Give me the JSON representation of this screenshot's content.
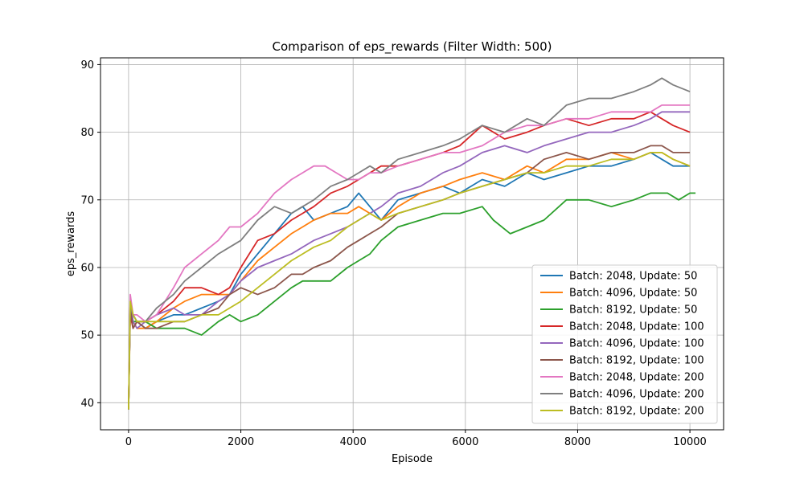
{
  "chart_data": {
    "type": "line",
    "title": "Comparison of eps_rewards (Filter Width: 500)",
    "xlabel": "Episode",
    "ylabel": "eps_rewards",
    "xlim": [
      -500,
      10600
    ],
    "ylim": [
      36,
      91
    ],
    "xticks": [
      0,
      2000,
      4000,
      6000,
      8000,
      10000
    ],
    "yticks": [
      40,
      50,
      60,
      70,
      80,
      90
    ],
    "grid": true,
    "legend_position": "lower right",
    "series": [
      {
        "name": "Batch: 2048, Update: 50",
        "color": "#1f77b4",
        "x": [
          0,
          30,
          80,
          150,
          300,
          500,
          800,
          1000,
          1300,
          1600,
          1800,
          2000,
          2300,
          2600,
          2900,
          3100,
          3300,
          3600,
          3900,
          4100,
          4300,
          4500,
          4800,
          5200,
          5600,
          5900,
          6300,
          6700,
          7100,
          7400,
          7800,
          8200,
          8600,
          9000,
          9300,
          9500,
          9700,
          10000
        ],
        "y": [
          39,
          54,
          53,
          52,
          51,
          52,
          53,
          53,
          54,
          55,
          56,
          59,
          62,
          65,
          68,
          69,
          67,
          68,
          69,
          71,
          69,
          67,
          70,
          71,
          72,
          71,
          73,
          72,
          74,
          73,
          74,
          75,
          75,
          76,
          77,
          76,
          75,
          75
        ]
      },
      {
        "name": "Batch: 4096, Update: 50",
        "color": "#ff7f0e",
        "x": [
          0,
          30,
          80,
          150,
          300,
          500,
          800,
          1000,
          1300,
          1600,
          1800,
          2000,
          2300,
          2600,
          2900,
          3100,
          3300,
          3600,
          3900,
          4100,
          4300,
          4500,
          4800,
          5200,
          5600,
          5900,
          6300,
          6700,
          7100,
          7400,
          7800,
          8200,
          8600,
          9000,
          9300,
          9500,
          9700,
          10000
        ],
        "y": [
          39,
          55,
          52,
          51,
          51,
          52,
          54,
          55,
          56,
          56,
          56,
          58,
          61,
          63,
          65,
          66,
          67,
          68,
          68,
          69,
          68,
          67,
          69,
          71,
          72,
          73,
          74,
          73,
          75,
          74,
          76,
          76,
          77,
          76,
          77,
          77,
          76,
          75
        ]
      },
      {
        "name": "Batch: 8192, Update: 50",
        "color": "#2ca02c",
        "x": [
          0,
          30,
          80,
          150,
          300,
          500,
          800,
          1000,
          1300,
          1600,
          1800,
          2000,
          2300,
          2600,
          2900,
          3100,
          3300,
          3600,
          3900,
          4100,
          4300,
          4500,
          4800,
          5200,
          5600,
          5900,
          6300,
          6500,
          6800,
          7100,
          7400,
          7800,
          8200,
          8600,
          9000,
          9300,
          9600,
          9800,
          10000,
          10100
        ],
        "y": [
          39,
          54,
          52,
          52,
          52,
          51,
          51,
          51,
          50,
          52,
          53,
          52,
          53,
          55,
          57,
          58,
          58,
          58,
          60,
          61,
          62,
          64,
          66,
          67,
          68,
          68,
          69,
          67,
          65,
          66,
          67,
          70,
          70,
          69,
          70,
          71,
          71,
          70,
          71,
          71
        ]
      },
      {
        "name": "Batch: 2048, Update: 100",
        "color": "#d62728",
        "x": [
          0,
          30,
          80,
          150,
          300,
          500,
          800,
          1000,
          1300,
          1600,
          1800,
          2000,
          2300,
          2600,
          2900,
          3100,
          3300,
          3600,
          3900,
          4100,
          4300,
          4500,
          4800,
          5200,
          5600,
          5900,
          6300,
          6700,
          7100,
          7400,
          7800,
          8200,
          8600,
          9000,
          9300,
          9500,
          9700,
          10000
        ],
        "y": [
          39,
          53,
          51,
          52,
          52,
          53,
          55,
          57,
          57,
          56,
          57,
          60,
          64,
          65,
          67,
          68,
          69,
          71,
          72,
          73,
          74,
          75,
          75,
          76,
          77,
          78,
          81,
          79,
          80,
          81,
          82,
          81,
          82,
          82,
          83,
          82,
          81,
          80
        ]
      },
      {
        "name": "Batch: 4096, Update: 100",
        "color": "#9467bd",
        "x": [
          0,
          30,
          80,
          150,
          300,
          500,
          800,
          1000,
          1300,
          1600,
          1800,
          2000,
          2300,
          2600,
          2900,
          3100,
          3300,
          3600,
          3900,
          4100,
          4300,
          4500,
          4800,
          5200,
          5600,
          5900,
          6300,
          6700,
          7100,
          7400,
          7800,
          8200,
          8600,
          9000,
          9300,
          9500,
          9700,
          10000
        ],
        "y": [
          39,
          55,
          52,
          51,
          52,
          53,
          54,
          53,
          53,
          55,
          56,
          58,
          60,
          61,
          62,
          63,
          64,
          65,
          66,
          67,
          68,
          69,
          71,
          72,
          74,
          75,
          77,
          78,
          77,
          78,
          79,
          80,
          80,
          81,
          82,
          83,
          83,
          83
        ]
      },
      {
        "name": "Batch: 8192, Update: 100",
        "color": "#8c564b",
        "x": [
          0,
          30,
          80,
          150,
          300,
          500,
          800,
          1000,
          1300,
          1600,
          1800,
          2000,
          2300,
          2600,
          2900,
          3100,
          3300,
          3600,
          3900,
          4100,
          4300,
          4500,
          4800,
          5200,
          5600,
          5900,
          6300,
          6700,
          7100,
          7400,
          7800,
          8200,
          8600,
          9000,
          9300,
          9500,
          9700,
          10000
        ],
        "y": [
          39,
          54,
          51,
          52,
          51,
          51,
          52,
          52,
          53,
          54,
          56,
          57,
          56,
          57,
          59,
          59,
          60,
          61,
          63,
          64,
          65,
          66,
          68,
          69,
          70,
          71,
          72,
          73,
          74,
          76,
          77,
          76,
          77,
          77,
          78,
          78,
          77,
          77
        ]
      },
      {
        "name": "Batch: 2048, Update: 200",
        "color": "#e377c2",
        "x": [
          0,
          30,
          80,
          150,
          300,
          500,
          800,
          1000,
          1300,
          1600,
          1800,
          2000,
          2300,
          2600,
          2900,
          3100,
          3300,
          3500,
          3700,
          3900,
          4100,
          4300,
          4500,
          4800,
          5200,
          5600,
          5900,
          6300,
          6700,
          7100,
          7400,
          7800,
          8200,
          8600,
          9000,
          9300,
          9500,
          9700,
          10000
        ],
        "y": [
          39,
          56,
          53,
          53,
          52,
          53,
          57,
          60,
          62,
          64,
          66,
          66,
          68,
          71,
          73,
          74,
          75,
          75,
          74,
          73,
          73,
          74,
          74,
          75,
          76,
          77,
          77,
          78,
          80,
          81,
          81,
          82,
          82,
          83,
          83,
          83,
          84,
          84,
          84
        ]
      },
      {
        "name": "Batch: 4096, Update: 200",
        "color": "#7f7f7f",
        "x": [
          0,
          30,
          80,
          150,
          300,
          500,
          800,
          1000,
          1300,
          1600,
          1800,
          2000,
          2300,
          2600,
          2900,
          3100,
          3300,
          3600,
          3900,
          4100,
          4300,
          4500,
          4800,
          5200,
          5600,
          5900,
          6300,
          6700,
          7100,
          7400,
          7800,
          8200,
          8600,
          9000,
          9300,
          9500,
          9700,
          10000
        ],
        "y": [
          39,
          54,
          53,
          52,
          52,
          54,
          56,
          58,
          60,
          62,
          63,
          64,
          67,
          69,
          68,
          69,
          70,
          72,
          73,
          74,
          75,
          74,
          76,
          77,
          78,
          79,
          81,
          80,
          82,
          81,
          84,
          85,
          85,
          86,
          87,
          88,
          87,
          86
        ]
      },
      {
        "name": "Batch: 8192, Update: 200",
        "color": "#bcbd22",
        "x": [
          0,
          30,
          80,
          150,
          300,
          500,
          800,
          1000,
          1300,
          1600,
          1800,
          2000,
          2300,
          2600,
          2900,
          3100,
          3300,
          3600,
          3900,
          4100,
          4300,
          4500,
          4800,
          5200,
          5600,
          5900,
          6300,
          6700,
          7100,
          7400,
          7800,
          8200,
          8600,
          9000,
          9300,
          9500,
          9700,
          10000
        ],
        "y": [
          39,
          55,
          53,
          52,
          52,
          52,
          52,
          52,
          53,
          53,
          54,
          55,
          57,
          59,
          61,
          62,
          63,
          64,
          66,
          67,
          68,
          67,
          68,
          69,
          70,
          71,
          72,
          73,
          74,
          74,
          75,
          75,
          76,
          76,
          77,
          77,
          76,
          75
        ]
      }
    ]
  }
}
